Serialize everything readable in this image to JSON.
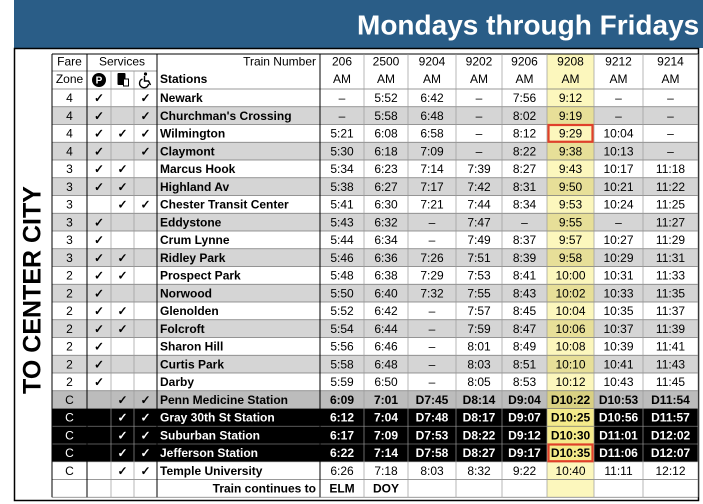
{
  "header": {
    "title": "Mondays through Fridays (Exc"
  },
  "side_label": "TO CENTER CITY",
  "columns": {
    "fare": "Fare",
    "zone": "Zone",
    "services": "Services",
    "parking_icon": "P",
    "stations": "Stations",
    "train_number": "Train Number"
  },
  "trains": [
    {
      "number": "206",
      "period": "AM"
    },
    {
      "number": "2500",
      "period": "AM"
    },
    {
      "number": "9204",
      "period": "AM"
    },
    {
      "number": "9202",
      "period": "AM"
    },
    {
      "number": "9206",
      "period": "AM"
    },
    {
      "number": "9208",
      "period": "AM"
    },
    {
      "number": "9212",
      "period": "AM"
    },
    {
      "number": "9214",
      "period": "AM"
    }
  ],
  "rows": [
    {
      "zone": "4",
      "services": [
        "✓",
        null,
        "✓"
      ],
      "station": "Newark",
      "times": [
        "–",
        "5:52",
        "6:42",
        "–",
        "7:56",
        "9:12",
        "–",
        "–"
      ]
    },
    {
      "zone": "4",
      "services": [
        "✓",
        null,
        "✓"
      ],
      "station": "Churchman's Crossing",
      "times": [
        "–",
        "5:58",
        "6:48",
        "–",
        "8:02",
        "9:19",
        "–",
        "–"
      ]
    },
    {
      "zone": "4",
      "services": [
        "✓",
        "✓",
        "✓"
      ],
      "station": "Wilmington",
      "times": [
        "5:21",
        "6:08",
        "6:58",
        "–",
        "8:12",
        "9:29",
        "10:04",
        "–"
      ]
    },
    {
      "zone": "4",
      "services": [
        "✓",
        null,
        "✓"
      ],
      "station": "Claymont",
      "times": [
        "5:30",
        "6:18",
        "7:09",
        "–",
        "8:22",
        "9:38",
        "10:13",
        "–"
      ]
    },
    {
      "zone": "3",
      "services": [
        "✓",
        "✓",
        null
      ],
      "station": "Marcus Hook",
      "times": [
        "5:34",
        "6:23",
        "7:14",
        "7:39",
        "8:27",
        "9:43",
        "10:17",
        "11:18"
      ]
    },
    {
      "zone": "3",
      "services": [
        "✓",
        "✓",
        null
      ],
      "station": "Highland Av",
      "times": [
        "5:38",
        "6:27",
        "7:17",
        "7:42",
        "8:31",
        "9:50",
        "10:21",
        "11:22"
      ]
    },
    {
      "zone": "3",
      "services": [
        null,
        "✓",
        "✓"
      ],
      "station": "Chester Transit Center",
      "times": [
        "5:41",
        "6:30",
        "7:21",
        "7:44",
        "8:34",
        "9:53",
        "10:24",
        "11:25"
      ]
    },
    {
      "zone": "3",
      "services": [
        "✓",
        null,
        null
      ],
      "station": "Eddystone",
      "times": [
        "5:43",
        "6:32",
        "–",
        "7:47",
        "–",
        "9:55",
        "–",
        "11:27"
      ]
    },
    {
      "zone": "3",
      "services": [
        "✓",
        null,
        null
      ],
      "station": "Crum Lynne",
      "times": [
        "5:44",
        "6:34",
        "–",
        "7:49",
        "8:37",
        "9:57",
        "10:27",
        "11:29"
      ]
    },
    {
      "zone": "3",
      "services": [
        "✓",
        "✓",
        null
      ],
      "station": "Ridley Park",
      "times": [
        "5:46",
        "6:36",
        "7:26",
        "7:51",
        "8:39",
        "9:58",
        "10:29",
        "11:31"
      ]
    },
    {
      "zone": "2",
      "services": [
        "✓",
        "✓",
        null
      ],
      "station": "Prospect Park",
      "times": [
        "5:48",
        "6:38",
        "7:29",
        "7:53",
        "8:41",
        "10:00",
        "10:31",
        "11:33"
      ]
    },
    {
      "zone": "2",
      "services": [
        "✓",
        null,
        null
      ],
      "station": "Norwood",
      "times": [
        "5:50",
        "6:40",
        "7:32",
        "7:55",
        "8:43",
        "10:02",
        "10:33",
        "11:35"
      ]
    },
    {
      "zone": "2",
      "services": [
        "✓",
        "✓",
        null
      ],
      "station": "Glenolden",
      "times": [
        "5:52",
        "6:42",
        "–",
        "7:57",
        "8:45",
        "10:04",
        "10:35",
        "11:37"
      ]
    },
    {
      "zone": "2",
      "services": [
        "✓",
        "✓",
        null
      ],
      "station": "Folcroft",
      "times": [
        "5:54",
        "6:44",
        "–",
        "7:59",
        "8:47",
        "10:06",
        "10:37",
        "11:39"
      ]
    },
    {
      "zone": "2",
      "services": [
        "✓",
        null,
        null
      ],
      "station": "Sharon Hill",
      "times": [
        "5:56",
        "6:46",
        "–",
        "8:01",
        "8:49",
        "10:08",
        "10:39",
        "11:41"
      ]
    },
    {
      "zone": "2",
      "services": [
        "✓",
        null,
        null
      ],
      "station": "Curtis Park",
      "times": [
        "5:58",
        "6:48",
        "–",
        "8:03",
        "8:51",
        "10:10",
        "10:41",
        "11:43"
      ]
    },
    {
      "zone": "2",
      "services": [
        "✓",
        null,
        null
      ],
      "station": "Darby",
      "times": [
        "5:59",
        "6:50",
        "–",
        "8:05",
        "8:53",
        "10:12",
        "10:43",
        "11:45"
      ]
    },
    {
      "zone": "C",
      "services": [
        null,
        "✓",
        "✓"
      ],
      "station": "Penn Medicine Station",
      "times": [
        "6:09",
        "7:01",
        "D7:45",
        "D8:14",
        "D9:04",
        "D10:22",
        "D10:53",
        "D11:54"
      ]
    },
    {
      "zone": "C",
      "services": [
        null,
        "✓",
        "✓"
      ],
      "station": "Gray 30th St Station",
      "times": [
        "6:12",
        "7:04",
        "D7:48",
        "D8:17",
        "D9:07",
        "D10:25",
        "D10:56",
        "D11:57"
      ]
    },
    {
      "zone": "C",
      "services": [
        null,
        "✓",
        "✓"
      ],
      "station": "Suburban Station",
      "times": [
        "6:17",
        "7:09",
        "D7:53",
        "D8:22",
        "D9:12",
        "D10:30",
        "D11:01",
        "D12:02"
      ]
    },
    {
      "zone": "C",
      "services": [
        null,
        "✓",
        "✓"
      ],
      "station": "Jefferson Station",
      "times": [
        "6:22",
        "7:14",
        "D7:58",
        "D8:27",
        "D9:17",
        "D10:35",
        "D11:06",
        "D12:07"
      ]
    },
    {
      "zone": "C",
      "services": [
        null,
        "✓",
        "✓"
      ],
      "station": "Temple University",
      "times": [
        "6:26",
        "7:18",
        "8:03",
        "8:32",
        "9:22",
        "10:40",
        "11:11",
        "12:12"
      ]
    }
  ],
  "footer": {
    "label": "Train continues to",
    "destinations": [
      "ELM",
      "DOY",
      null,
      null,
      null,
      null,
      null,
      null
    ]
  }
}
